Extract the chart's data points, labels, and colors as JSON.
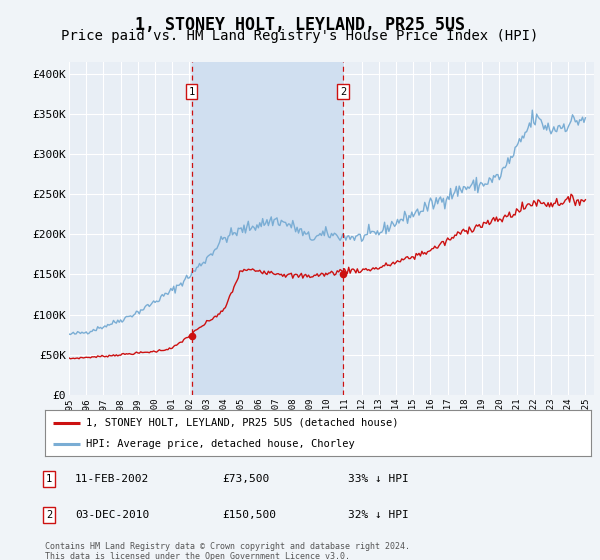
{
  "title": "1, STONEY HOLT, LEYLAND, PR25 5US",
  "subtitle": "Price paid vs. HM Land Registry's House Price Index (HPI)",
  "title_fontsize": 12,
  "subtitle_fontsize": 10,
  "bg_color": "#f0f4f8",
  "plot_bg_color": "#e8eef5",
  "highlight_color": "#d0dff0",
  "grid_color": "#ffffff",
  "hpi_color": "#7aadd4",
  "price_color": "#cc1111",
  "vline_color": "#cc1111",
  "yticks": [
    0,
    50000,
    100000,
    150000,
    200000,
    250000,
    300000,
    350000,
    400000
  ],
  "ylim": [
    0,
    415000
  ],
  "xlim_start": 1995.0,
  "xlim_end": 2025.5,
  "purchases": [
    {
      "label": "1",
      "date": 2002.12,
      "price": 73500
    },
    {
      "label": "2",
      "date": 2010.92,
      "price": 150500
    }
  ],
  "purchase_table": [
    {
      "num": "1",
      "date": "11-FEB-2002",
      "price": "£73,500",
      "hpi": "33% ↓ HPI"
    },
    {
      "num": "2",
      "date": "03-DEC-2010",
      "price": "£150,500",
      "hpi": "32% ↓ HPI"
    }
  ],
  "legend_entries": [
    {
      "label": "1, STONEY HOLT, LEYLAND, PR25 5US (detached house)",
      "color": "#cc1111"
    },
    {
      "label": "HPI: Average price, detached house, Chorley",
      "color": "#7aadd4"
    }
  ],
  "footer": "Contains HM Land Registry data © Crown copyright and database right 2024.\nThis data is licensed under the Open Government Licence v3.0.",
  "hpi_base": [
    75000,
    78000,
    85000,
    93000,
    103000,
    116000,
    130000,
    148000,
    170000,
    195000,
    205000,
    212000,
    218000,
    210000,
    195000,
    200000,
    197000,
    196000,
    202000,
    215000,
    225000,
    236000,
    248000,
    258000,
    262000,
    272000,
    305000,
    345000,
    330000,
    338000,
    345000
  ],
  "price_base": [
    45000,
    46500,
    48000,
    50000,
    52000,
    54000,
    58000,
    73500,
    90000,
    105000,
    155000,
    155000,
    152000,
    148000,
    148000,
    150500,
    155000,
    155000,
    158000,
    165000,
    172000,
    180000,
    192000,
    205000,
    212000,
    218000,
    228000,
    240000,
    238000,
    242000,
    243000
  ],
  "hpi_noise_scale": 0.018,
  "price_noise_scale": 0.012,
  "monthly_points": 12
}
